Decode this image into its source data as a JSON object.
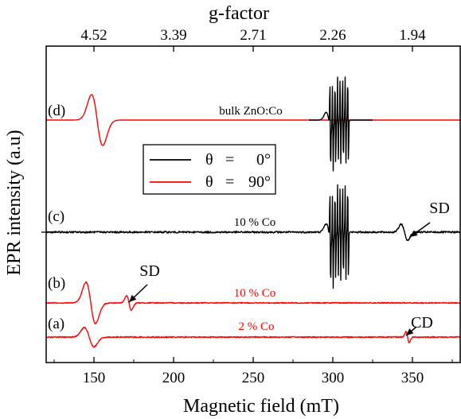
{
  "chart_data": {
    "type": "line",
    "xlabel": "Magnetic field (mT)",
    "ylabel": "EPR intensity (a.u)",
    "top_axis_label": "g-factor",
    "xlim": [
      120,
      380
    ],
    "x_ticks": [
      150,
      200,
      250,
      300,
      350
    ],
    "top_ticks": [
      "4.52",
      "3.39",
      "2.71",
      "2.26",
      "1.94"
    ],
    "top_tick_fields": [
      150,
      200,
      250,
      300,
      350
    ],
    "grid": false,
    "legend": {
      "placement": "center",
      "entries": [
        {
          "name": "θ = 0°",
          "color": "#000000"
        },
        {
          "name": "θ = 90°",
          "color": "#ff0000"
        }
      ]
    },
    "series": [
      {
        "trace": "(d)",
        "sample": "bulk ZnO:Co",
        "angle": "θ = 90°",
        "color": "#ff0000",
        "x_start": 120,
        "x_end": 380,
        "features": [
          {
            "type": "derivative",
            "center": 152,
            "width": 3.5
          }
        ]
      },
      {
        "trace": "(d)",
        "sample": "bulk ZnO:Co",
        "angle": "θ = 0°",
        "color": "#000000",
        "x_start": 285,
        "x_end": 325,
        "features": [
          {
            "type": "hyperfine-octet",
            "center": 304,
            "spacing": 1.6,
            "lines": 8
          }
        ]
      },
      {
        "trace": "(c)",
        "sample": "10 % Co",
        "angle": "θ = 0°",
        "color": "#000000",
        "x_start": 120,
        "x_end": 380,
        "features": [
          {
            "type": "hyperfine-octet",
            "center": 304,
            "spacing": 1.6,
            "lines": 8
          },
          {
            "type": "derivative",
            "center": 345,
            "width": 2,
            "label": "SD"
          }
        ]
      },
      {
        "trace": "(b)",
        "sample": "10 % Co",
        "angle": "θ = 90°",
        "color": "#ff0000",
        "x_start": 120,
        "x_end": 380,
        "features": [
          {
            "type": "derivative",
            "center": 148,
            "width": 3
          },
          {
            "type": "derivative",
            "center": 172,
            "width": 1.5,
            "label": "SD"
          }
        ]
      },
      {
        "trace": "(a)",
        "sample": "2 % Co",
        "angle": "θ = 90°",
        "color": "#ff0000",
        "x_start": 120,
        "x_end": 380,
        "features": [
          {
            "type": "derivative",
            "center": 147,
            "width": 3
          },
          {
            "type": "derivative",
            "center": 347,
            "width": 1,
            "label": "CD"
          }
        ]
      }
    ],
    "annotations": [
      {
        "text": "SD",
        "trace": "(c)",
        "field": 345
      },
      {
        "text": "SD",
        "trace": "(b)",
        "field": 172
      },
      {
        "text": "CD",
        "trace": "(a)",
        "field": 347
      }
    ]
  }
}
